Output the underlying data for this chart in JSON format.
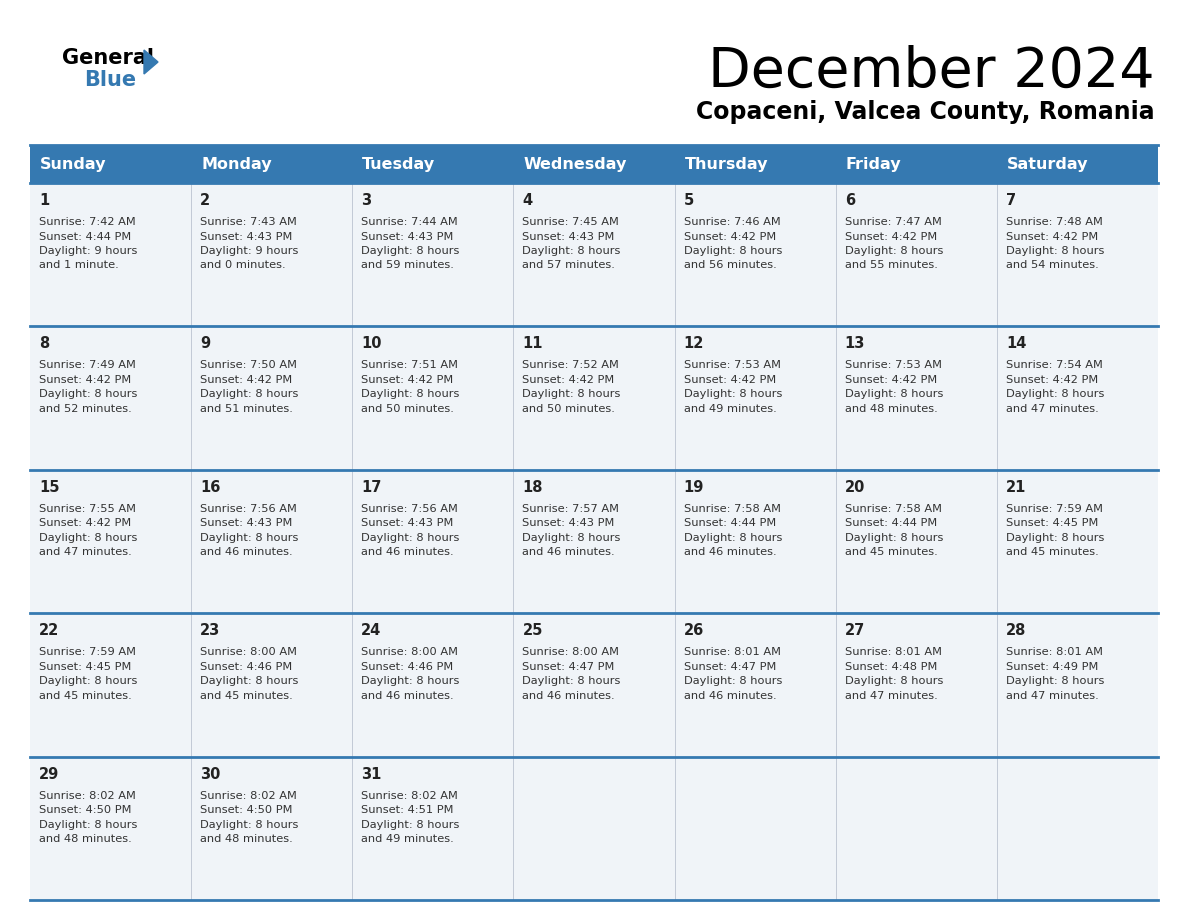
{
  "title": "December 2024",
  "subtitle": "Copaceni, Valcea County, Romania",
  "header_bg_color": "#3579b1",
  "header_text_color": "#ffffff",
  "header_days": [
    "Sunday",
    "Monday",
    "Tuesday",
    "Wednesday",
    "Thursday",
    "Friday",
    "Saturday"
  ],
  "row_bg_color": "#f0f4f8",
  "separator_color": "#3579b1",
  "cell_text_color": "#333333",
  "days": [
    {
      "day": 1,
      "col": 0,
      "row": 0,
      "sunrise": "7:42 AM",
      "sunset": "4:44 PM",
      "daylight_hours": 9,
      "daylight_minutes": 1,
      "singular": true
    },
    {
      "day": 2,
      "col": 1,
      "row": 0,
      "sunrise": "7:43 AM",
      "sunset": "4:43 PM",
      "daylight_hours": 9,
      "daylight_minutes": 0,
      "singular": false
    },
    {
      "day": 3,
      "col": 2,
      "row": 0,
      "sunrise": "7:44 AM",
      "sunset": "4:43 PM",
      "daylight_hours": 8,
      "daylight_minutes": 59,
      "singular": false
    },
    {
      "day": 4,
      "col": 3,
      "row": 0,
      "sunrise": "7:45 AM",
      "sunset": "4:43 PM",
      "daylight_hours": 8,
      "daylight_minutes": 57,
      "singular": false
    },
    {
      "day": 5,
      "col": 4,
      "row": 0,
      "sunrise": "7:46 AM",
      "sunset": "4:42 PM",
      "daylight_hours": 8,
      "daylight_minutes": 56,
      "singular": false
    },
    {
      "day": 6,
      "col": 5,
      "row": 0,
      "sunrise": "7:47 AM",
      "sunset": "4:42 PM",
      "daylight_hours": 8,
      "daylight_minutes": 55,
      "singular": false
    },
    {
      "day": 7,
      "col": 6,
      "row": 0,
      "sunrise": "7:48 AM",
      "sunset": "4:42 PM",
      "daylight_hours": 8,
      "daylight_minutes": 54,
      "singular": false
    },
    {
      "day": 8,
      "col": 0,
      "row": 1,
      "sunrise": "7:49 AM",
      "sunset": "4:42 PM",
      "daylight_hours": 8,
      "daylight_minutes": 52,
      "singular": false
    },
    {
      "day": 9,
      "col": 1,
      "row": 1,
      "sunrise": "7:50 AM",
      "sunset": "4:42 PM",
      "daylight_hours": 8,
      "daylight_minutes": 51,
      "singular": false
    },
    {
      "day": 10,
      "col": 2,
      "row": 1,
      "sunrise": "7:51 AM",
      "sunset": "4:42 PM",
      "daylight_hours": 8,
      "daylight_minutes": 50,
      "singular": false
    },
    {
      "day": 11,
      "col": 3,
      "row": 1,
      "sunrise": "7:52 AM",
      "sunset": "4:42 PM",
      "daylight_hours": 8,
      "daylight_minutes": 50,
      "singular": false
    },
    {
      "day": 12,
      "col": 4,
      "row": 1,
      "sunrise": "7:53 AM",
      "sunset": "4:42 PM",
      "daylight_hours": 8,
      "daylight_minutes": 49,
      "singular": false
    },
    {
      "day": 13,
      "col": 5,
      "row": 1,
      "sunrise": "7:53 AM",
      "sunset": "4:42 PM",
      "daylight_hours": 8,
      "daylight_minutes": 48,
      "singular": false
    },
    {
      "day": 14,
      "col": 6,
      "row": 1,
      "sunrise": "7:54 AM",
      "sunset": "4:42 PM",
      "daylight_hours": 8,
      "daylight_minutes": 47,
      "singular": false
    },
    {
      "day": 15,
      "col": 0,
      "row": 2,
      "sunrise": "7:55 AM",
      "sunset": "4:42 PM",
      "daylight_hours": 8,
      "daylight_minutes": 47,
      "singular": false
    },
    {
      "day": 16,
      "col": 1,
      "row": 2,
      "sunrise": "7:56 AM",
      "sunset": "4:43 PM",
      "daylight_hours": 8,
      "daylight_minutes": 46,
      "singular": false
    },
    {
      "day": 17,
      "col": 2,
      "row": 2,
      "sunrise": "7:56 AM",
      "sunset": "4:43 PM",
      "daylight_hours": 8,
      "daylight_minutes": 46,
      "singular": false
    },
    {
      "day": 18,
      "col": 3,
      "row": 2,
      "sunrise": "7:57 AM",
      "sunset": "4:43 PM",
      "daylight_hours": 8,
      "daylight_minutes": 46,
      "singular": false
    },
    {
      "day": 19,
      "col": 4,
      "row": 2,
      "sunrise": "7:58 AM",
      "sunset": "4:44 PM",
      "daylight_hours": 8,
      "daylight_minutes": 46,
      "singular": false
    },
    {
      "day": 20,
      "col": 5,
      "row": 2,
      "sunrise": "7:58 AM",
      "sunset": "4:44 PM",
      "daylight_hours": 8,
      "daylight_minutes": 45,
      "singular": false
    },
    {
      "day": 21,
      "col": 6,
      "row": 2,
      "sunrise": "7:59 AM",
      "sunset": "4:45 PM",
      "daylight_hours": 8,
      "daylight_minutes": 45,
      "singular": false
    },
    {
      "day": 22,
      "col": 0,
      "row": 3,
      "sunrise": "7:59 AM",
      "sunset": "4:45 PM",
      "daylight_hours": 8,
      "daylight_minutes": 45,
      "singular": false
    },
    {
      "day": 23,
      "col": 1,
      "row": 3,
      "sunrise": "8:00 AM",
      "sunset": "4:46 PM",
      "daylight_hours": 8,
      "daylight_minutes": 45,
      "singular": false
    },
    {
      "day": 24,
      "col": 2,
      "row": 3,
      "sunrise": "8:00 AM",
      "sunset": "4:46 PM",
      "daylight_hours": 8,
      "daylight_minutes": 46,
      "singular": false
    },
    {
      "day": 25,
      "col": 3,
      "row": 3,
      "sunrise": "8:00 AM",
      "sunset": "4:47 PM",
      "daylight_hours": 8,
      "daylight_minutes": 46,
      "singular": false
    },
    {
      "day": 26,
      "col": 4,
      "row": 3,
      "sunrise": "8:01 AM",
      "sunset": "4:47 PM",
      "daylight_hours": 8,
      "daylight_minutes": 46,
      "singular": false
    },
    {
      "day": 27,
      "col": 5,
      "row": 3,
      "sunrise": "8:01 AM",
      "sunset": "4:48 PM",
      "daylight_hours": 8,
      "daylight_minutes": 47,
      "singular": false
    },
    {
      "day": 28,
      "col": 6,
      "row": 3,
      "sunrise": "8:01 AM",
      "sunset": "4:49 PM",
      "daylight_hours": 8,
      "daylight_minutes": 47,
      "singular": false
    },
    {
      "day": 29,
      "col": 0,
      "row": 4,
      "sunrise": "8:02 AM",
      "sunset": "4:50 PM",
      "daylight_hours": 8,
      "daylight_minutes": 48,
      "singular": false
    },
    {
      "day": 30,
      "col": 1,
      "row": 4,
      "sunrise": "8:02 AM",
      "sunset": "4:50 PM",
      "daylight_hours": 8,
      "daylight_minutes": 48,
      "singular": false
    },
    {
      "day": 31,
      "col": 2,
      "row": 4,
      "sunrise": "8:02 AM",
      "sunset": "4:51 PM",
      "daylight_hours": 8,
      "daylight_minutes": 49,
      "singular": false
    }
  ]
}
